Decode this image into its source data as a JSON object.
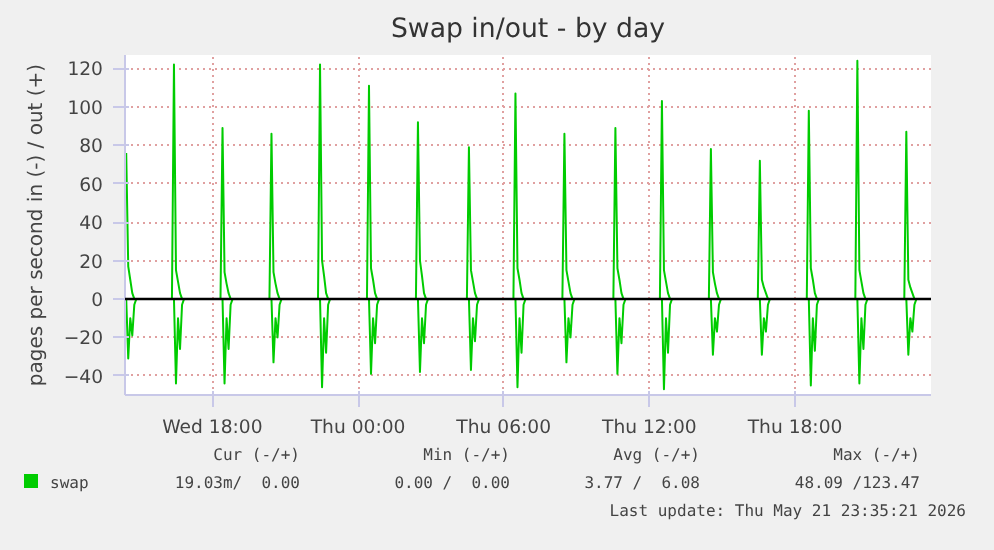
{
  "chart_data": {
    "type": "line",
    "title": "Swap in/out - by day",
    "ylabel": "pages per second in (-) / out (+)",
    "xlim": [
      "2026-05-20T14:24",
      "2026-05-21T23:36"
    ],
    "ylim": [
      -50,
      127
    ],
    "xticks": [
      {
        "value": "2026-05-20T18:00",
        "label": "Wed 18:00"
      },
      {
        "value": "2026-05-21T00:00",
        "label": "Thu 00:00"
      },
      {
        "value": "2026-05-21T06:00",
        "label": "Thu 06:00"
      },
      {
        "value": "2026-05-21T12:00",
        "label": "Thu 12:00"
      },
      {
        "value": "2026-05-21T18:00",
        "label": "Thu 18:00"
      }
    ],
    "yticks": [
      -40,
      -20,
      0,
      20,
      40,
      60,
      80,
      100,
      120
    ],
    "grid": true,
    "legend": "bottom left",
    "ref_lines": [
      {
        "axis": "y",
        "value": 0,
        "label": null,
        "color": "#000000"
      }
    ],
    "series": [
      {
        "name": "swap",
        "color": "#00cc00",
        "x": [
          "2026-05-20T14:27",
          "2026-05-20T14:32",
          "2026-05-20T14:37",
          "2026-05-20T14:42",
          "2026-05-20T14:47",
          "2026-05-20T16:20",
          "2026-05-20T16:25",
          "2026-05-20T16:30",
          "2026-05-20T16:35",
          "2026-05-20T16:40",
          "2026-05-20T16:45",
          "2026-05-20T18:20",
          "2026-05-20T18:25",
          "2026-05-20T18:30",
          "2026-05-20T18:35",
          "2026-05-20T18:40",
          "2026-05-20T18:45",
          "2026-05-20T20:21",
          "2026-05-20T20:26",
          "2026-05-20T20:31",
          "2026-05-20T20:36",
          "2026-05-20T20:41",
          "2026-05-20T20:46",
          "2026-05-20T22:21",
          "2026-05-20T22:26",
          "2026-05-20T22:31",
          "2026-05-20T22:36",
          "2026-05-20T22:41",
          "2026-05-20T22:46",
          "2026-05-21T00:22",
          "2026-05-21T00:27",
          "2026-05-21T00:32",
          "2026-05-21T00:37",
          "2026-05-21T00:42",
          "2026-05-21T00:47",
          "2026-05-21T02:23",
          "2026-05-21T02:28",
          "2026-05-21T02:33",
          "2026-05-21T02:38",
          "2026-05-21T02:43",
          "2026-05-21T02:48",
          "2026-05-21T04:29",
          "2026-05-21T04:34",
          "2026-05-21T04:39",
          "2026-05-21T04:44",
          "2026-05-21T04:49",
          "2026-05-21T04:54",
          "2026-05-21T06:24",
          "2026-05-21T06:29",
          "2026-05-21T06:34",
          "2026-05-21T06:39",
          "2026-05-21T06:44",
          "2026-05-21T06:49",
          "2026-05-21T08:25",
          "2026-05-21T08:30",
          "2026-05-21T08:35",
          "2026-05-21T08:40",
          "2026-05-21T08:45",
          "2026-05-21T08:50",
          "2026-05-21T10:31",
          "2026-05-21T10:36",
          "2026-05-21T10:41",
          "2026-05-21T10:46",
          "2026-05-21T10:51",
          "2026-05-21T10:56",
          "2026-05-21T12:26",
          "2026-05-21T12:31",
          "2026-05-21T12:36",
          "2026-05-21T12:41",
          "2026-05-21T12:46",
          "2026-05-21T12:51",
          "2026-05-21T14:27",
          "2026-05-21T14:32",
          "2026-05-21T14:37",
          "2026-05-21T14:42",
          "2026-05-21T14:47",
          "2026-05-21T14:52",
          "2026-05-21T16:28",
          "2026-05-21T16:33",
          "2026-05-21T16:38",
          "2026-05-21T16:43",
          "2026-05-21T16:48",
          "2026-05-21T16:53",
          "2026-05-21T18:29",
          "2026-05-21T18:34",
          "2026-05-21T18:39",
          "2026-05-21T18:44",
          "2026-05-21T18:49",
          "2026-05-21T18:54",
          "2026-05-21T20:29",
          "2026-05-21T20:34",
          "2026-05-21T20:39",
          "2026-05-21T20:44",
          "2026-05-21T20:49",
          "2026-05-21T20:54",
          "2026-05-21T22:30",
          "2026-05-21T22:35",
          "2026-05-21T22:40",
          "2026-05-21T22:45",
          "2026-05-21T22:50",
          "2026-05-21T22:55"
        ],
        "values": [
          76,
          17,
          10,
          3,
          0,
          0,
          122,
          15,
          9,
          3,
          0,
          0,
          89,
          14,
          8,
          3,
          0,
          0,
          86,
          14,
          8,
          3,
          0,
          0,
          122,
          20,
          12,
          3,
          0,
          0,
          111,
          16,
          10,
          3,
          0,
          0,
          92,
          20,
          12,
          3,
          0,
          0,
          79,
          15,
          9,
          3,
          0,
          0,
          107,
          16,
          10,
          3,
          0,
          0,
          86,
          15,
          9,
          3,
          0,
          0,
          89,
          16,
          10,
          3,
          0,
          0,
          103,
          15,
          9,
          3,
          0,
          0,
          78,
          14,
          8,
          3,
          0,
          0,
          72,
          10,
          6,
          3,
          0,
          0,
          98,
          16,
          10,
          3,
          0,
          0,
          124,
          15,
          9,
          3,
          0,
          0,
          87,
          10,
          6,
          3,
          0
        ]
      },
      {
        "color": "#00cc00",
        "x": [
          "2026-05-20T14:27",
          "2026-05-20T14:32",
          "2026-05-20T14:37",
          "2026-05-20T14:42",
          "2026-05-20T14:47",
          "2026-05-20T14:52",
          "2026-05-20T16:25",
          "2026-05-20T16:30",
          "2026-05-20T16:35",
          "2026-05-20T16:40",
          "2026-05-20T16:45",
          "2026-05-20T16:50",
          "2026-05-20T18:25",
          "2026-05-20T18:30",
          "2026-05-20T18:35",
          "2026-05-20T18:40",
          "2026-05-20T18:45",
          "2026-05-20T18:50",
          "2026-05-20T20:26",
          "2026-05-20T20:31",
          "2026-05-20T20:36",
          "2026-05-20T20:41",
          "2026-05-20T20:46",
          "2026-05-20T20:51",
          "2026-05-20T22:26",
          "2026-05-20T22:31",
          "2026-05-20T22:36",
          "2026-05-20T22:41",
          "2026-05-20T22:46",
          "2026-05-20T22:51",
          "2026-05-21T00:27",
          "2026-05-21T00:32",
          "2026-05-21T00:37",
          "2026-05-21T00:42",
          "2026-05-21T00:47",
          "2026-05-21T00:52",
          "2026-05-21T02:28",
          "2026-05-21T02:33",
          "2026-05-21T02:38",
          "2026-05-21T02:43",
          "2026-05-21T02:48",
          "2026-05-21T02:53",
          "2026-05-21T04:34",
          "2026-05-21T04:39",
          "2026-05-21T04:44",
          "2026-05-21T04:49",
          "2026-05-21T04:54",
          "2026-05-21T04:59",
          "2026-05-21T06:29",
          "2026-05-21T06:34",
          "2026-05-21T06:39",
          "2026-05-21T06:44",
          "2026-05-21T06:49",
          "2026-05-21T06:54",
          "2026-05-21T08:30",
          "2026-05-21T08:35",
          "2026-05-21T08:40",
          "2026-05-21T08:45",
          "2026-05-21T08:50",
          "2026-05-21T08:55",
          "2026-05-21T10:36",
          "2026-05-21T10:41",
          "2026-05-21T10:46",
          "2026-05-21T10:51",
          "2026-05-21T10:56",
          "2026-05-21T11:01",
          "2026-05-21T12:31",
          "2026-05-21T12:36",
          "2026-05-21T12:41",
          "2026-05-21T12:46",
          "2026-05-21T12:51",
          "2026-05-21T12:56",
          "2026-05-21T14:32",
          "2026-05-21T14:37",
          "2026-05-21T14:42",
          "2026-05-21T14:47",
          "2026-05-21T14:52",
          "2026-05-21T14:57",
          "2026-05-21T16:33",
          "2026-05-21T16:38",
          "2026-05-21T16:43",
          "2026-05-21T16:48",
          "2026-05-21T16:53",
          "2026-05-21T16:58",
          "2026-05-21T18:34",
          "2026-05-21T18:39",
          "2026-05-21T18:44",
          "2026-05-21T18:49",
          "2026-05-21T18:54",
          "2026-05-21T18:59",
          "2026-05-21T20:34",
          "2026-05-21T20:39",
          "2026-05-21T20:44",
          "2026-05-21T20:49",
          "2026-05-21T20:54",
          "2026-05-21T20:59",
          "2026-05-21T22:35",
          "2026-05-21T22:40",
          "2026-05-21T22:45",
          "2026-05-21T22:50",
          "2026-05-21T22:55",
          "2026-05-21T23:00"
        ],
        "values": [
          0,
          -31,
          -10,
          -19,
          -3,
          0,
          0,
          -44,
          -10,
          -26,
          -3,
          0,
          0,
          -44,
          -10,
          -26,
          -3,
          0,
          0,
          -33,
          -10,
          -20,
          -3,
          0,
          0,
          -46,
          -10,
          -28,
          -3,
          0,
          0,
          -39,
          -10,
          -23,
          -3,
          0,
          0,
          -38,
          -10,
          -23,
          -3,
          0,
          0,
          -37,
          -10,
          -22,
          -3,
          0,
          0,
          -46,
          -10,
          -28,
          -3,
          0,
          0,
          -33,
          -10,
          -20,
          -3,
          0,
          0,
          -39,
          -10,
          -23,
          -3,
          0,
          0,
          -47,
          -10,
          -28,
          -3,
          0,
          0,
          -29,
          -10,
          -17,
          -3,
          0,
          0,
          -29,
          -10,
          -17,
          -3,
          0,
          0,
          -45,
          -10,
          -27,
          -3,
          0,
          0,
          -44,
          -10,
          -26,
          -3,
          0,
          0,
          -29,
          -10,
          -17,
          -3,
          0
        ]
      }
    ],
    "annotations": [
      "Cur (-/+)",
      "19.03m/  0.00",
      "Min (-/+)",
      "0.00 /  0.00",
      "Avg (-/+)",
      "3.77 /  6.08",
      "Max (-/+)",
      "48.09 /123.47",
      "Last update: Thu May 21 23:35:21 2026"
    ]
  }
}
